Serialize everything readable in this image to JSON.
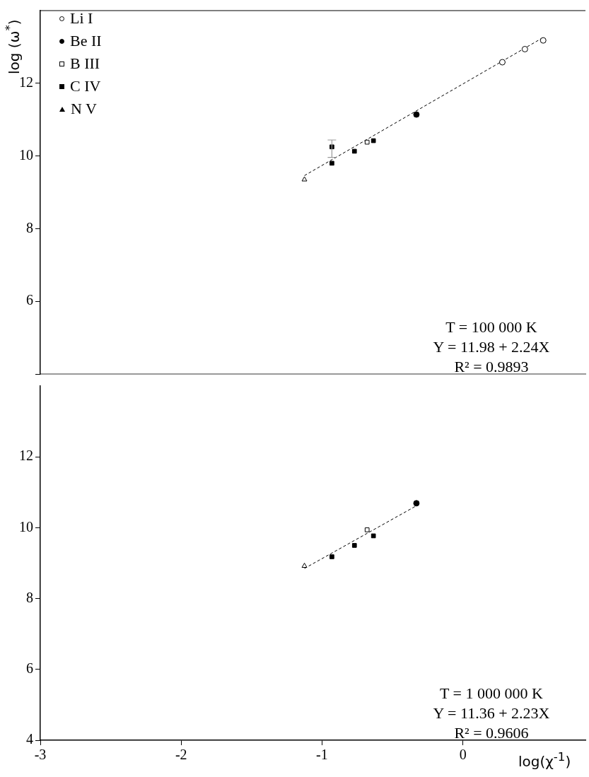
{
  "chart_data": [
    {
      "type": "scatter",
      "ylabel": "log (ω$^{*}$)",
      "xlim": [
        -3,
        0.87
      ],
      "xticks": [
        -3,
        -2,
        -1,
        0
      ],
      "ylim": [
        4,
        14
      ],
      "yticks": [
        {
          "value": 4,
          "label": null
        },
        6,
        8,
        10,
        12
      ],
      "tick_labels": "y",
      "legend": "top left",
      "grid": false,
      "annotations": [
        "T = 100 000 K",
        "Y = 11.98 + 2.24X",
        "R² = 0.9893"
      ],
      "series": [
        {
          "name": "Li I",
          "color": "#ffffff",
          "marker": "circle",
          "x": [
            0.28,
            0.44,
            0.57
          ],
          "values": [
            12.58,
            12.94,
            13.18
          ]
        },
        {
          "name": "Be II",
          "color": "#000000",
          "marker": "circle",
          "x": [
            -0.33
          ],
          "values": [
            11.14
          ]
        },
        {
          "name": "B III",
          "color": "#ffffff",
          "marker": "square",
          "x": [
            -0.68
          ],
          "values": [
            10.38
          ]
        },
        {
          "name": "C IV",
          "color": "#000000",
          "marker": "square",
          "x": [
            -0.93,
            -0.93,
            -0.77,
            -0.635
          ],
          "values": [
            10.25,
            9.8,
            10.13,
            10.42
          ],
          "errors": [
            [
              9.96,
              10.44
            ],
            null,
            null,
            null
          ]
        },
        {
          "name": "N V",
          "color": "#ffffff",
          "marker": "triangle",
          "x": [
            -1.125
          ],
          "values": [
            9.35
          ]
        },
        {
          "type": "line",
          "color": "#000000",
          "marker": "none",
          "line_style": "dashed",
          "x": [
            -1.125,
            0.57
          ],
          "values": [
            9.46,
            13.26
          ]
        }
      ]
    },
    {
      "type": "scatter",
      "xlabel": "log(χ$^{-1}$)",
      "xlim": [
        -3,
        0.87
      ],
      "xticks": [
        -3,
        -2,
        -1,
        0
      ],
      "ylim": [
        4,
        14
      ],
      "yticks": [
        4,
        6,
        8,
        10,
        12
      ],
      "grid": false,
      "annotations": [
        "T = 1 000 000 K",
        "Y = 11.36 + 2.23X",
        "R² = 0.9606"
      ],
      "series": [
        {
          "color": "#000000",
          "marker": "circle",
          "x": [
            -0.33
          ],
          "values": [
            10.69
          ]
        },
        {
          "color": "#ffffff",
          "marker": "square",
          "x": [
            -0.68
          ],
          "values": [
            9.94
          ]
        },
        {
          "color": "#000000",
          "marker": "square",
          "x": [
            -0.93,
            -0.77,
            -0.635
          ],
          "values": [
            9.18,
            9.5,
            9.77
          ]
        },
        {
          "color": "#ffffff",
          "marker": "triangle",
          "x": [
            -1.125
          ],
          "values": [
            8.92
          ]
        },
        {
          "type": "line",
          "color": "#000000",
          "marker": "none",
          "line_style": "dashed",
          "x": [
            -1.125,
            -0.33
          ],
          "values": [
            8.85,
            10.62
          ]
        }
      ]
    }
  ]
}
